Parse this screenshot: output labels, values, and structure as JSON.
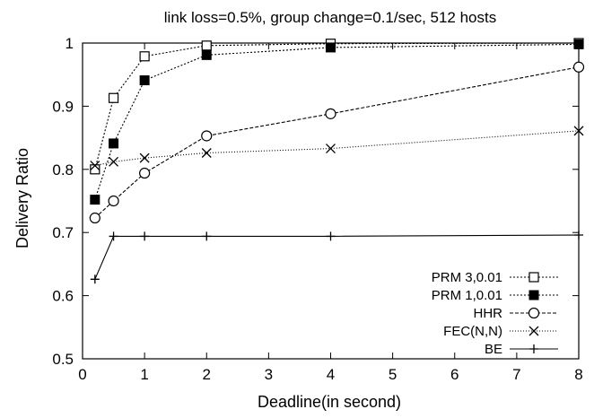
{
  "chart_data": {
    "type": "line",
    "title": "link loss=0.5%,  group change=0.1/sec,  512 hosts",
    "xlabel": "Deadline(in second)",
    "ylabel": "Delivery Ratio",
    "xlim": [
      0,
      8
    ],
    "ylim": [
      0.5,
      1.0
    ],
    "x_ticks": [
      0,
      1,
      2,
      3,
      4,
      5,
      6,
      7,
      8
    ],
    "y_ticks": [
      0.5,
      0.6,
      0.7,
      0.8,
      0.9,
      1.0
    ],
    "x_tick_labels": [
      "0",
      "1",
      "2",
      "3",
      "4",
      "5",
      "6",
      "7",
      "8"
    ],
    "y_tick_labels": [
      "0.5",
      "0.6",
      "0.7",
      "0.8",
      "0.9",
      "1"
    ],
    "grid": false,
    "legend_position": "bottom-right",
    "series": [
      {
        "name": "PRM 3,0.01",
        "marker": "open-square",
        "dash": "dotted",
        "x": [
          0.2,
          0.5,
          1,
          2,
          4,
          8
        ],
        "y": [
          0.8,
          0.913,
          0.979,
          0.996,
          0.999,
          1.0
        ]
      },
      {
        "name": "PRM 1,0.01",
        "marker": "filled-square",
        "dash": "dotted",
        "x": [
          0.2,
          0.5,
          1,
          2,
          4,
          8
        ],
        "y": [
          0.752,
          0.841,
          0.941,
          0.981,
          0.993,
          0.998
        ]
      },
      {
        "name": "HHR",
        "marker": "open-circle",
        "dash": "dashed",
        "x": [
          0.2,
          0.5,
          1,
          2,
          4,
          8
        ],
        "y": [
          0.723,
          0.75,
          0.794,
          0.853,
          0.888,
          0.962
        ]
      },
      {
        "name": "FEC(N,N)",
        "marker": "cross",
        "dash": "fine-dotted",
        "x": [
          0.2,
          0.5,
          1,
          2,
          4,
          8
        ],
        "y": [
          0.806,
          0.812,
          0.818,
          0.826,
          0.833,
          0.861
        ]
      },
      {
        "name": "BE",
        "marker": "plus",
        "dash": "solid",
        "x": [
          0.2,
          0.5,
          1,
          2,
          4,
          8
        ],
        "y": [
          0.626,
          0.694,
          0.694,
          0.694,
          0.694,
          0.696
        ]
      }
    ]
  }
}
